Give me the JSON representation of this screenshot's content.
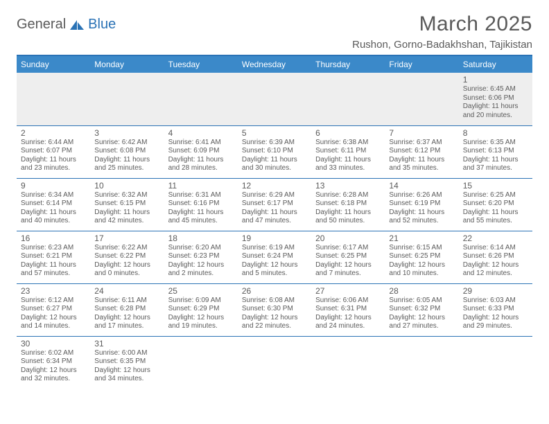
{
  "logo": {
    "text1": "General",
    "text2": "Blue"
  },
  "title": "March 2025",
  "location": "Rushon, Gorno-Badakhshan, Tajikistan",
  "colors": {
    "header_bg": "#3b89c9",
    "accent": "#2a72b5",
    "text": "#5a5a5a",
    "alt_row": "#eeeeee",
    "bg": "#ffffff"
  },
  "weekdays": [
    "Sunday",
    "Monday",
    "Tuesday",
    "Wednesday",
    "Thursday",
    "Friday",
    "Saturday"
  ],
  "weeks": [
    [
      null,
      null,
      null,
      null,
      null,
      null,
      {
        "n": "1",
        "sr": "6:45 AM",
        "ss": "6:06 PM",
        "dl": "11 hours and 20 minutes."
      }
    ],
    [
      {
        "n": "2",
        "sr": "6:44 AM",
        "ss": "6:07 PM",
        "dl": "11 hours and 23 minutes."
      },
      {
        "n": "3",
        "sr": "6:42 AM",
        "ss": "6:08 PM",
        "dl": "11 hours and 25 minutes."
      },
      {
        "n": "4",
        "sr": "6:41 AM",
        "ss": "6:09 PM",
        "dl": "11 hours and 28 minutes."
      },
      {
        "n": "5",
        "sr": "6:39 AM",
        "ss": "6:10 PM",
        "dl": "11 hours and 30 minutes."
      },
      {
        "n": "6",
        "sr": "6:38 AM",
        "ss": "6:11 PM",
        "dl": "11 hours and 33 minutes."
      },
      {
        "n": "7",
        "sr": "6:37 AM",
        "ss": "6:12 PM",
        "dl": "11 hours and 35 minutes."
      },
      {
        "n": "8",
        "sr": "6:35 AM",
        "ss": "6:13 PM",
        "dl": "11 hours and 37 minutes."
      }
    ],
    [
      {
        "n": "9",
        "sr": "6:34 AM",
        "ss": "6:14 PM",
        "dl": "11 hours and 40 minutes."
      },
      {
        "n": "10",
        "sr": "6:32 AM",
        "ss": "6:15 PM",
        "dl": "11 hours and 42 minutes."
      },
      {
        "n": "11",
        "sr": "6:31 AM",
        "ss": "6:16 PM",
        "dl": "11 hours and 45 minutes."
      },
      {
        "n": "12",
        "sr": "6:29 AM",
        "ss": "6:17 PM",
        "dl": "11 hours and 47 minutes."
      },
      {
        "n": "13",
        "sr": "6:28 AM",
        "ss": "6:18 PM",
        "dl": "11 hours and 50 minutes."
      },
      {
        "n": "14",
        "sr": "6:26 AM",
        "ss": "6:19 PM",
        "dl": "11 hours and 52 minutes."
      },
      {
        "n": "15",
        "sr": "6:25 AM",
        "ss": "6:20 PM",
        "dl": "11 hours and 55 minutes."
      }
    ],
    [
      {
        "n": "16",
        "sr": "6:23 AM",
        "ss": "6:21 PM",
        "dl": "11 hours and 57 minutes."
      },
      {
        "n": "17",
        "sr": "6:22 AM",
        "ss": "6:22 PM",
        "dl": "12 hours and 0 minutes."
      },
      {
        "n": "18",
        "sr": "6:20 AM",
        "ss": "6:23 PM",
        "dl": "12 hours and 2 minutes."
      },
      {
        "n": "19",
        "sr": "6:19 AM",
        "ss": "6:24 PM",
        "dl": "12 hours and 5 minutes."
      },
      {
        "n": "20",
        "sr": "6:17 AM",
        "ss": "6:25 PM",
        "dl": "12 hours and 7 minutes."
      },
      {
        "n": "21",
        "sr": "6:15 AM",
        "ss": "6:25 PM",
        "dl": "12 hours and 10 minutes."
      },
      {
        "n": "22",
        "sr": "6:14 AM",
        "ss": "6:26 PM",
        "dl": "12 hours and 12 minutes."
      }
    ],
    [
      {
        "n": "23",
        "sr": "6:12 AM",
        "ss": "6:27 PM",
        "dl": "12 hours and 14 minutes."
      },
      {
        "n": "24",
        "sr": "6:11 AM",
        "ss": "6:28 PM",
        "dl": "12 hours and 17 minutes."
      },
      {
        "n": "25",
        "sr": "6:09 AM",
        "ss": "6:29 PM",
        "dl": "12 hours and 19 minutes."
      },
      {
        "n": "26",
        "sr": "6:08 AM",
        "ss": "6:30 PM",
        "dl": "12 hours and 22 minutes."
      },
      {
        "n": "27",
        "sr": "6:06 AM",
        "ss": "6:31 PM",
        "dl": "12 hours and 24 minutes."
      },
      {
        "n": "28",
        "sr": "6:05 AM",
        "ss": "6:32 PM",
        "dl": "12 hours and 27 minutes."
      },
      {
        "n": "29",
        "sr": "6:03 AM",
        "ss": "6:33 PM",
        "dl": "12 hours and 29 minutes."
      }
    ],
    [
      {
        "n": "30",
        "sr": "6:02 AM",
        "ss": "6:34 PM",
        "dl": "12 hours and 32 minutes."
      },
      {
        "n": "31",
        "sr": "6:00 AM",
        "ss": "6:35 PM",
        "dl": "12 hours and 34 minutes."
      },
      null,
      null,
      null,
      null,
      null
    ]
  ],
  "labels": {
    "sunrise": "Sunrise:",
    "sunset": "Sunset:",
    "daylight": "Daylight:"
  }
}
